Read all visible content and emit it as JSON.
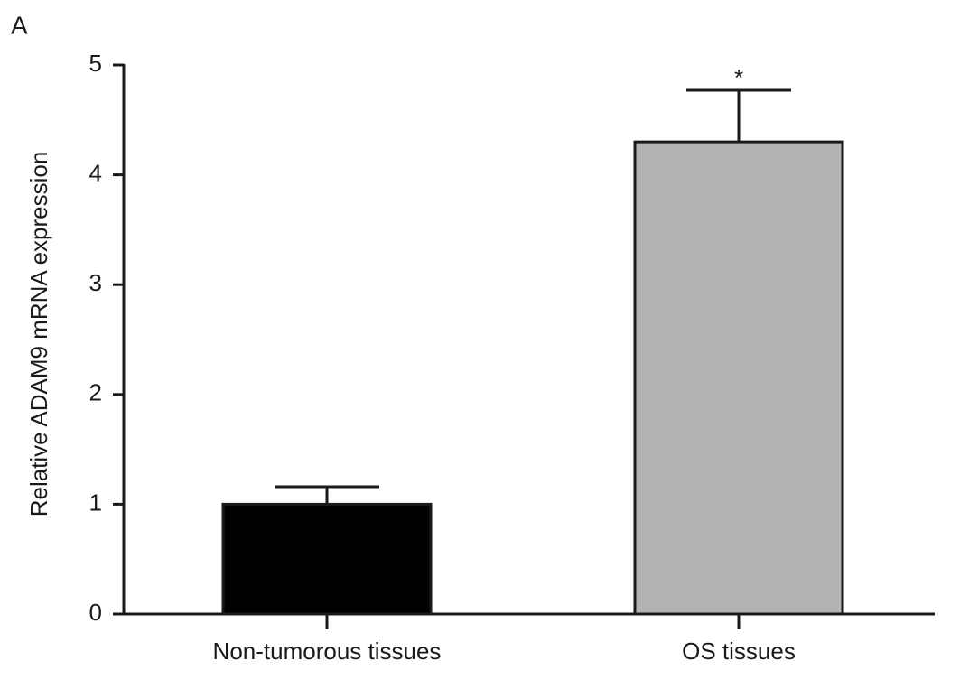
{
  "panel_label": "A",
  "chart_data": {
    "type": "bar",
    "ylabel": "Relative ADAM9 mRNA expression",
    "categories": [
      "Non-tumorous tissues",
      "OS tissues"
    ],
    "values": [
      1.0,
      4.3
    ],
    "errors": [
      0.16,
      0.47
    ],
    "colors": [
      "#000000",
      "#b3b3b3"
    ],
    "significance": [
      null,
      "*"
    ],
    "ylim": [
      0,
      5
    ],
    "yticks": [
      0,
      1,
      2,
      3,
      4,
      5
    ]
  }
}
